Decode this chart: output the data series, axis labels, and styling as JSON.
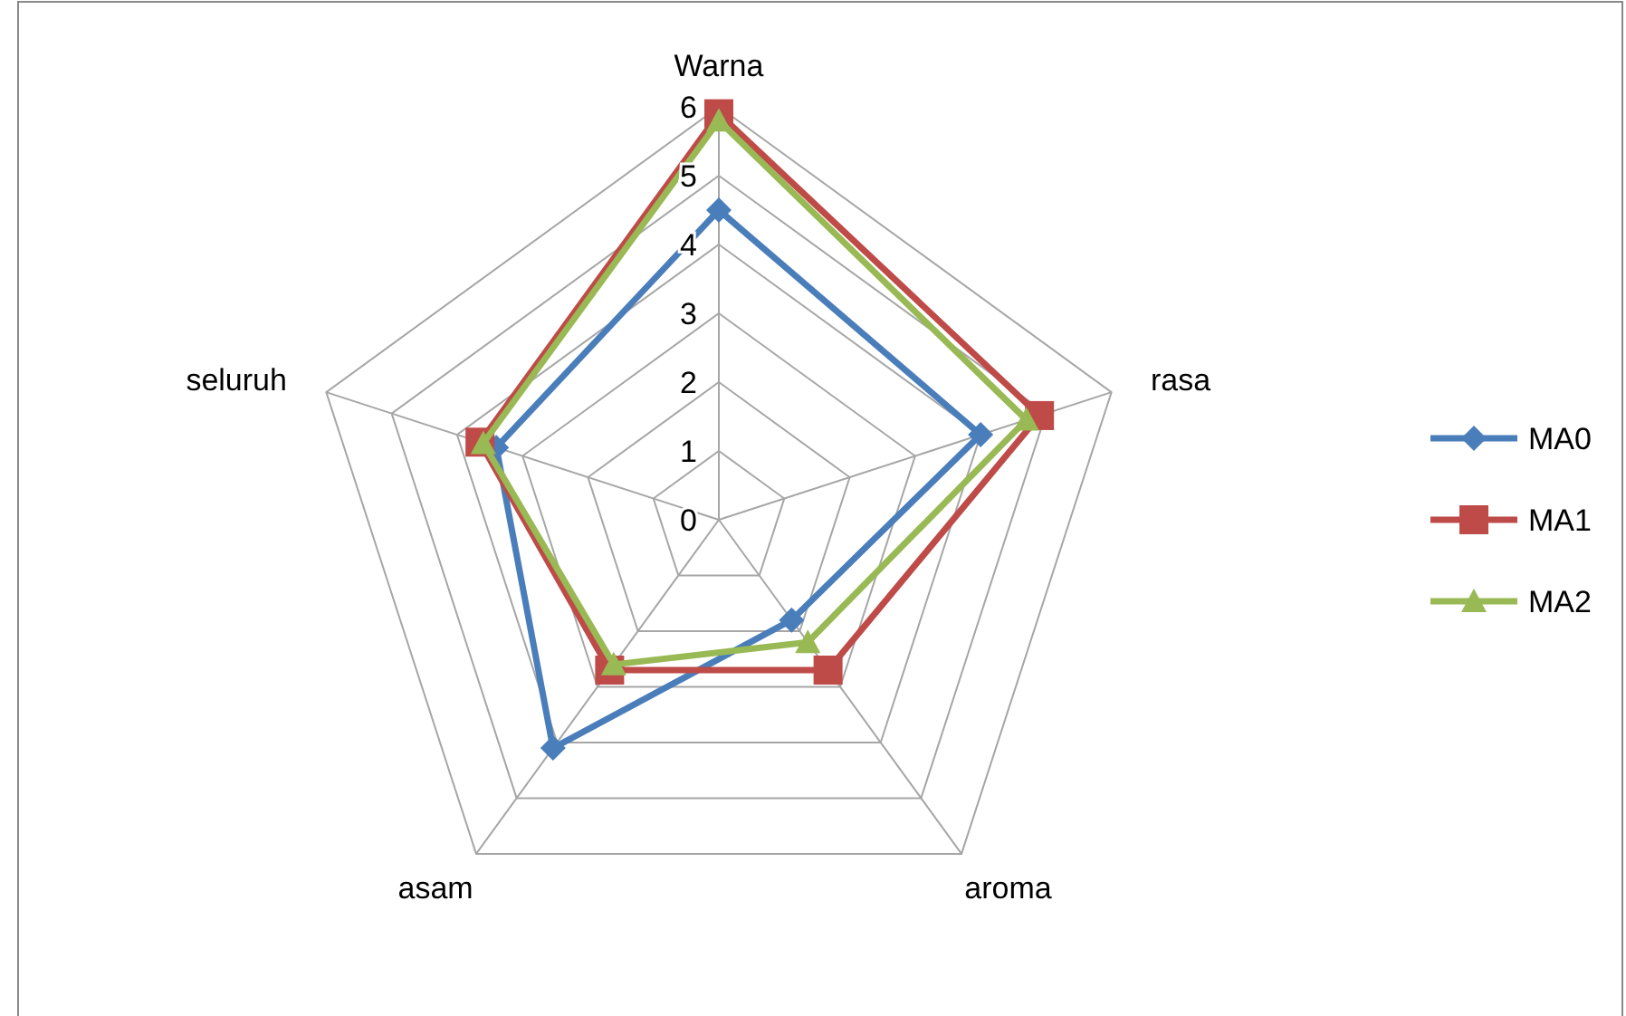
{
  "chart_data": {
    "type": "radar",
    "categories": [
      "Warna",
      "rasa",
      "aroma",
      "asam",
      "seluruh"
    ],
    "ylim": [
      0,
      6
    ],
    "yticks": [
      0,
      1,
      2,
      3,
      4,
      5,
      6
    ],
    "grid": true,
    "legend": "right",
    "series": [
      {
        "name": "MA0",
        "color": "#4a7ebb",
        "marker": "diamond",
        "values": [
          4.5,
          4.0,
          1.8,
          4.1,
          3.4
        ]
      },
      {
        "name": "MA1",
        "color": "#be4b48",
        "marker": "square",
        "values": [
          5.9,
          4.9,
          2.7,
          2.7,
          3.65
        ]
      },
      {
        "name": "MA2",
        "color": "#98b954",
        "marker": "triangle",
        "values": [
          5.8,
          4.7,
          2.2,
          2.6,
          3.6
        ]
      }
    ]
  }
}
